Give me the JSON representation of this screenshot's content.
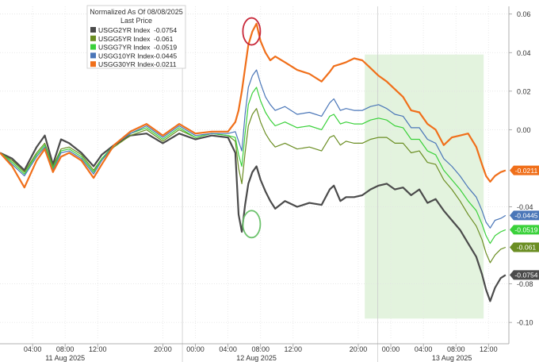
{
  "legend": {
    "title_line1": "Normalized As Of 08/08/2025",
    "title_line2": "Last Price"
  },
  "chart_data": {
    "type": "line",
    "legend_position": "top-left",
    "grid": true,
    "y_ticks": [
      "-0.10",
      "-0.08",
      "-0.04",
      "0.00",
      "0.02",
      "0.04",
      "0.06"
    ],
    "y_tick_values": [
      -0.1,
      -0.08,
      -0.04,
      0.0,
      0.02,
      0.04,
      0.06
    ],
    "ylim": [
      -0.109,
      0.064
    ],
    "x_ticks": [
      "04:00",
      "08:00",
      "12:00",
      "20:00",
      "00:00",
      "04:00",
      "08:00",
      "12:00",
      "20:00",
      "00:00",
      "04:00",
      "08:00",
      "12:00"
    ],
    "x_tick_hours": [
      4,
      8,
      12,
      20,
      24,
      28,
      32,
      36,
      44,
      48,
      52,
      56,
      60
    ],
    "x_day_labels": [
      "11 Aug 2025",
      "12 Aug 2025",
      "13 Aug 2025"
    ],
    "x_day_label_hours": [
      8,
      31.5,
      55.5
    ],
    "x_day_separator_hours": [
      22.4,
      46.4
    ],
    "xlim": [
      0,
      62.5
    ],
    "shaded_region": {
      "x": [
        44.8,
        59.4
      ],
      "y": [
        -0.098,
        0.039
      ],
      "color": "#e3f3de"
    },
    "circles": [
      {
        "x": 30.9,
        "y": -0.049,
        "color": "#6cc26c"
      },
      {
        "x": 30.9,
        "y": 0.051,
        "color": "#c8283a"
      }
    ],
    "series": [
      {
        "name": "USGG2YR Index",
        "last_price": "-0.0754",
        "color": "#4b4b4b",
        "x": [
          0,
          1.5,
          3,
          4.5,
          5.5,
          6.5,
          7.5,
          8.5,
          10,
          11.5,
          12.5,
          14,
          16,
          18,
          20,
          22,
          24,
          26,
          28,
          28.9,
          29.3,
          29.7,
          30.1,
          30.5,
          31,
          31.5,
          32,
          32.6,
          33.2,
          33.8,
          35,
          36.5,
          38,
          39.5,
          40.5,
          41,
          41.8,
          42.5,
          43.5,
          44.5,
          45.5,
          46.5,
          47.5,
          48.5,
          49.5,
          50.5,
          51.5,
          52.5,
          53.5,
          54.5,
          55.5,
          56.5,
          57.5,
          58.5,
          59.2,
          59.7,
          60.2,
          60.8,
          61.5,
          62.1
        ],
        "y": [
          -0.012,
          -0.015,
          -0.021,
          -0.009,
          -0.003,
          -0.018,
          -0.005,
          -0.007,
          -0.012,
          -0.019,
          -0.013,
          -0.008,
          -0.003,
          -0.002,
          -0.007,
          -0.002,
          -0.005,
          -0.003,
          -0.004,
          -0.012,
          -0.044,
          -0.053,
          -0.039,
          -0.028,
          -0.022,
          -0.019,
          -0.026,
          -0.032,
          -0.037,
          -0.041,
          -0.037,
          -0.04,
          -0.038,
          -0.039,
          -0.031,
          -0.029,
          -0.037,
          -0.035,
          -0.035,
          -0.034,
          -0.031,
          -0.029,
          -0.028,
          -0.031,
          -0.03,
          -0.034,
          -0.031,
          -0.038,
          -0.036,
          -0.042,
          -0.047,
          -0.052,
          -0.059,
          -0.066,
          -0.075,
          -0.083,
          -0.089,
          -0.082,
          -0.077,
          -0.0754
        ]
      },
      {
        "name": "USGG5YR Index",
        "last_price": "-0.061",
        "color": "#6b8e23",
        "x": [
          0,
          1.5,
          3,
          4.5,
          5.5,
          6.5,
          7.5,
          8.5,
          10,
          11.5,
          12.5,
          14,
          16,
          18,
          20,
          22,
          24,
          26,
          28,
          28.9,
          29.3,
          29.7,
          30.1,
          30.5,
          31,
          31.5,
          32,
          32.6,
          33.2,
          33.8,
          35,
          36.5,
          38,
          39.5,
          40.5,
          41,
          41.8,
          42.5,
          43.5,
          44.5,
          45.5,
          46.5,
          47.5,
          48.5,
          49.5,
          50.5,
          51.5,
          52.5,
          53.5,
          54.5,
          55.5,
          56.5,
          57.5,
          58.5,
          59.2,
          59.7,
          60.2,
          60.8,
          61.5,
          62.1
        ],
        "y": [
          -0.012,
          -0.016,
          -0.022,
          -0.012,
          -0.007,
          -0.019,
          -0.01,
          -0.009,
          -0.013,
          -0.021,
          -0.015,
          -0.009,
          -0.003,
          0.0,
          -0.006,
          0.0,
          -0.004,
          -0.002,
          -0.003,
          -0.006,
          -0.02,
          -0.028,
          -0.012,
          0.002,
          0.008,
          0.011,
          0.004,
          -0.002,
          -0.006,
          -0.009,
          -0.007,
          -0.01,
          -0.009,
          -0.011,
          -0.004,
          -0.003,
          -0.008,
          -0.006,
          -0.007,
          -0.007,
          -0.005,
          -0.004,
          -0.004,
          -0.007,
          -0.007,
          -0.012,
          -0.011,
          -0.017,
          -0.018,
          -0.026,
          -0.031,
          -0.037,
          -0.044,
          -0.05,
          -0.057,
          -0.064,
          -0.069,
          -0.065,
          -0.062,
          -0.061
        ]
      },
      {
        "name": "USGG7YR Index",
        "last_price": "-0.0519",
        "color": "#3ad13a",
        "x": [
          0,
          1.5,
          3,
          4.5,
          5.5,
          6.5,
          7.5,
          8.5,
          10,
          11.5,
          12.5,
          14,
          16,
          18,
          20,
          22,
          24,
          26,
          28,
          28.9,
          29.3,
          29.7,
          30.1,
          30.5,
          31,
          31.5,
          32,
          32.6,
          33.2,
          33.8,
          35,
          36.5,
          38,
          39.5,
          40.5,
          41,
          41.8,
          42.5,
          43.5,
          44.5,
          45.5,
          46.5,
          47.5,
          48.5,
          49.5,
          50.5,
          51.5,
          52.5,
          53.5,
          54.5,
          55.5,
          56.5,
          57.5,
          58.5,
          59.2,
          59.7,
          60.2,
          60.8,
          61.5,
          62.1
        ],
        "y": [
          -0.012,
          -0.017,
          -0.023,
          -0.013,
          -0.008,
          -0.02,
          -0.011,
          -0.01,
          -0.014,
          -0.022,
          -0.015,
          -0.008,
          -0.002,
          0.001,
          -0.005,
          0.001,
          -0.004,
          -0.002,
          -0.003,
          -0.004,
          -0.013,
          -0.019,
          -0.002,
          0.013,
          0.019,
          0.022,
          0.015,
          0.009,
          0.005,
          0.002,
          0.004,
          0.001,
          0.002,
          0.0,
          0.007,
          0.008,
          0.003,
          0.004,
          0.003,
          0.003,
          0.005,
          0.006,
          0.005,
          0.002,
          0.001,
          -0.005,
          -0.005,
          -0.011,
          -0.013,
          -0.021,
          -0.026,
          -0.031,
          -0.037,
          -0.042,
          -0.049,
          -0.055,
          -0.059,
          -0.055,
          -0.053,
          -0.0519
        ]
      },
      {
        "name": "USGG10YR Index",
        "last_price": "-0.0445",
        "color": "#4a76b8",
        "x": [
          0,
          1.5,
          3,
          4.5,
          5.5,
          6.5,
          7.5,
          8.5,
          10,
          11.5,
          12.5,
          14,
          16,
          18,
          20,
          22,
          24,
          26,
          28,
          28.9,
          29.3,
          29.7,
          30.1,
          30.5,
          31,
          31.5,
          32,
          32.6,
          33.2,
          33.8,
          35,
          36.5,
          38,
          39.5,
          40.5,
          41,
          41.8,
          42.5,
          43.5,
          44.5,
          45.5,
          46.5,
          47.5,
          48.5,
          49.5,
          50.5,
          51.5,
          52.5,
          53.5,
          54.5,
          55.5,
          56.5,
          57.5,
          58.5,
          59.2,
          59.7,
          60.2,
          60.8,
          61.5,
          62.1
        ],
        "y": [
          -0.012,
          -0.018,
          -0.024,
          -0.014,
          -0.009,
          -0.021,
          -0.012,
          -0.011,
          -0.015,
          -0.023,
          -0.016,
          -0.008,
          -0.002,
          0.002,
          -0.004,
          0.002,
          -0.003,
          -0.002,
          -0.002,
          -0.001,
          -0.006,
          -0.011,
          0.008,
          0.022,
          0.028,
          0.031,
          0.024,
          0.017,
          0.013,
          0.01,
          0.012,
          0.008,
          0.009,
          0.007,
          0.014,
          0.016,
          0.01,
          0.011,
          0.01,
          0.01,
          0.012,
          0.013,
          0.011,
          0.008,
          0.007,
          0.001,
          0.001,
          -0.005,
          -0.007,
          -0.015,
          -0.019,
          -0.024,
          -0.03,
          -0.035,
          -0.042,
          -0.048,
          -0.051,
          -0.047,
          -0.046,
          -0.0445
        ]
      },
      {
        "name": "USGG30YR Index",
        "last_price": "-0.0211",
        "color": "#f06f1a",
        "x": [
          0,
          1.5,
          3,
          4.5,
          5.5,
          6.5,
          7.5,
          8.5,
          10,
          11.5,
          12.5,
          14,
          16,
          18,
          20,
          22,
          24,
          26,
          28,
          28.9,
          29.3,
          29.7,
          30.1,
          30.5,
          31,
          31.5,
          32,
          32.6,
          33.2,
          33.8,
          35,
          36.5,
          38,
          39.5,
          40.5,
          41,
          41.8,
          42.5,
          43.5,
          44.5,
          45.5,
          46.5,
          47.5,
          48.5,
          49.5,
          50.5,
          51.5,
          52.5,
          53.5,
          54.5,
          55.5,
          56.5,
          57.5,
          58.5,
          59.2,
          59.7,
          60.2,
          60.8,
          61.5,
          62.1
        ],
        "y": [
          -0.012,
          -0.019,
          -0.03,
          -0.016,
          -0.01,
          -0.022,
          -0.014,
          -0.012,
          -0.016,
          -0.025,
          -0.018,
          -0.008,
          -0.001,
          0.003,
          -0.003,
          0.003,
          -0.002,
          -0.001,
          -0.001,
          0.004,
          0.01,
          0.02,
          0.032,
          0.044,
          0.051,
          0.055,
          0.046,
          0.04,
          0.036,
          0.038,
          0.035,
          0.031,
          0.029,
          0.025,
          0.03,
          0.033,
          0.034,
          0.035,
          0.037,
          0.036,
          0.032,
          0.028,
          0.025,
          0.021,
          0.017,
          0.01,
          0.009,
          0.003,
          0.0,
          -0.008,
          -0.004,
          -0.003,
          -0.002,
          -0.009,
          -0.018,
          -0.024,
          -0.027,
          -0.024,
          -0.022,
          -0.0211
        ]
      }
    ]
  }
}
